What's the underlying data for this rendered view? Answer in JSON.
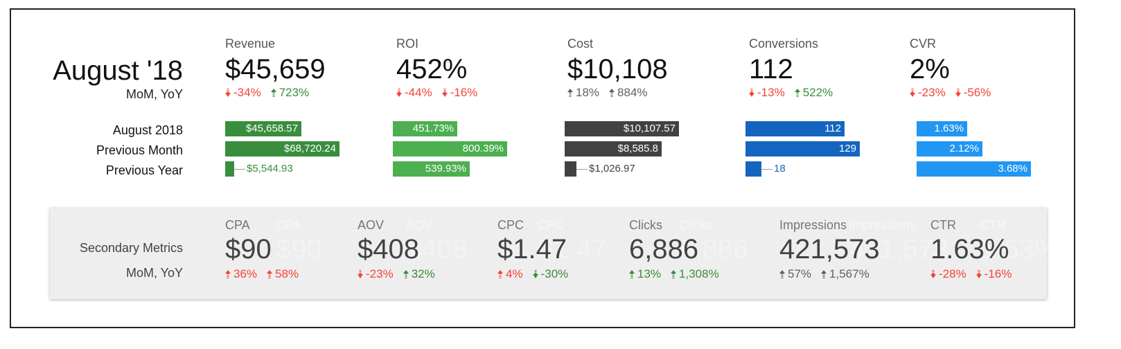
{
  "header": {
    "title": "August '18",
    "subtitle": "MoM, YoY"
  },
  "row_labels": [
    "August 2018",
    "Previous Month",
    "Previous Year"
  ],
  "colors": {
    "red": "#f44336",
    "green": "#388e3c",
    "grey": "#616161"
  },
  "primary": [
    {
      "name": "Revenue",
      "value": "$45,659",
      "mom": {
        "text": "-34%",
        "dir": "down",
        "color": "red"
      },
      "yoy": {
        "text": "723%",
        "dir": "up",
        "color": "green"
      },
      "bar_color": "#388e3c",
      "bars": [
        {
          "value": 45658.57,
          "label": "$45,658.57"
        },
        {
          "value": 68720.24,
          "label": "$68,720.24"
        },
        {
          "value": 5544.93,
          "label": "$5,544.93"
        }
      ]
    },
    {
      "name": "ROI",
      "value": "452%",
      "mom": {
        "text": "-44%",
        "dir": "down",
        "color": "red"
      },
      "yoy": {
        "text": "-16%",
        "dir": "down",
        "color": "red"
      },
      "bar_color": "#4caf50",
      "bars": [
        {
          "value": 451.73,
          "label": "451.73%"
        },
        {
          "value": 800.39,
          "label": "800.39%"
        },
        {
          "value": 539.93,
          "label": "539.93%"
        }
      ]
    },
    {
      "name": "Cost",
      "value": "$10,108",
      "mom": {
        "text": "18%",
        "dir": "up",
        "color": "grey"
      },
      "yoy": {
        "text": "884%",
        "dir": "up",
        "color": "grey"
      },
      "bar_color": "#424242",
      "bars": [
        {
          "value": 10107.57,
          "label": "$10,107.57"
        },
        {
          "value": 8585.8,
          "label": "$8,585.8"
        },
        {
          "value": 1026.97,
          "label": "$1,026.97"
        }
      ]
    },
    {
      "name": "Conversions",
      "value": "112",
      "mom": {
        "text": "-13%",
        "dir": "down",
        "color": "red"
      },
      "yoy": {
        "text": "522%",
        "dir": "up",
        "color": "green"
      },
      "bar_color": "#1565c0",
      "bars": [
        {
          "value": 112,
          "label": "112"
        },
        {
          "value": 129,
          "label": "129"
        },
        {
          "value": 18,
          "label": "18"
        }
      ]
    },
    {
      "name": "CVR",
      "value": "2%",
      "mom": {
        "text": "-23%",
        "dir": "down",
        "color": "red"
      },
      "yoy": {
        "text": "-56%",
        "dir": "down",
        "color": "red"
      },
      "bar_color": "#2196f3",
      "bars": [
        {
          "value": 1.63,
          "label": "1.63%"
        },
        {
          "value": 2.12,
          "label": "2.12%"
        },
        {
          "value": 3.68,
          "label": "3.68%"
        }
      ]
    }
  ],
  "secondary": {
    "title": "Secondary Metrics",
    "subtitle": "MoM, YoY",
    "metrics": [
      {
        "name": "CPA",
        "value": "$90",
        "mom": {
          "text": "36%",
          "dir": "up",
          "color": "red"
        },
        "yoy": {
          "text": "58%",
          "dir": "up",
          "color": "red"
        }
      },
      {
        "name": "AOV",
        "value": "$408",
        "mom": {
          "text": "-23%",
          "dir": "down",
          "color": "red"
        },
        "yoy": {
          "text": "32%",
          "dir": "up",
          "color": "green"
        }
      },
      {
        "name": "CPC",
        "value": "$1.47",
        "mom": {
          "text": "4%",
          "dir": "up",
          "color": "red"
        },
        "yoy": {
          "text": "-30%",
          "dir": "down",
          "color": "green"
        }
      },
      {
        "name": "Clicks",
        "value": "6,886",
        "mom": {
          "text": "13%",
          "dir": "up",
          "color": "green"
        },
        "yoy": {
          "text": "1,308%",
          "dir": "up",
          "color": "green"
        }
      },
      {
        "name": "Impressions",
        "value": "421,573",
        "mom": {
          "text": "57%",
          "dir": "up",
          "color": "grey"
        },
        "yoy": {
          "text": "1,567%",
          "dir": "up",
          "color": "grey"
        }
      },
      {
        "name": "CTR",
        "value": "1.63%",
        "mom": {
          "text": "-28%",
          "dir": "down",
          "color": "red"
        },
        "yoy": {
          "text": "-16%",
          "dir": "down",
          "color": "red"
        }
      }
    ]
  }
}
